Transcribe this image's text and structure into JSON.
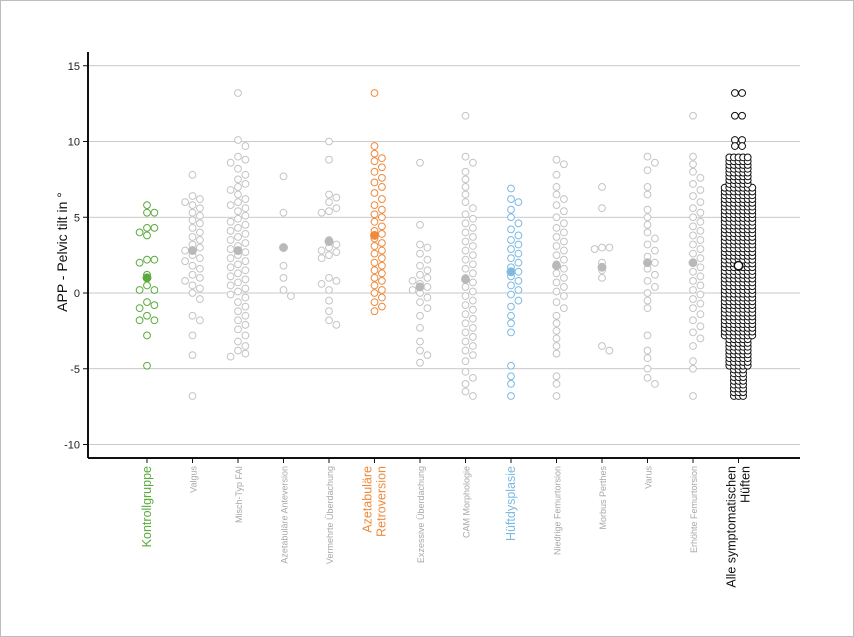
{
  "chart_data": {
    "type": "scatter",
    "subtype": "beeswarm",
    "ylabel": "APP - Pelvic tilt in °",
    "ylim": [
      -11,
      16
    ],
    "yticks": [
      15,
      10,
      5,
      0,
      -5,
      -10
    ],
    "grid": true,
    "colors": {
      "grey": "#c4c4c4",
      "mean_grey": "#b9b9b9",
      "green": "#5aaa3c",
      "orange": "#ef8a3c",
      "blue": "#7db9e3",
      "black": "#111111"
    },
    "categories": [
      {
        "label": "Kontrollgruppe",
        "lines": [
          "Kontrollgruppe"
        ],
        "color": "green",
        "emphasis": true,
        "mean": 1.0,
        "values": [
          5.8,
          5.3,
          5.3,
          4.3,
          4.3,
          4.0,
          3.8,
          2.2,
          2.2,
          2.0,
          1.2,
          0.5,
          0.2,
          0.2,
          -0.6,
          -0.8,
          -1.0,
          -1.5,
          -1.8,
          -1.8,
          -2.8,
          -4.8
        ]
      },
      {
        "label": "Valgus",
        "lines": [
          "Valgus"
        ],
        "color": "grey",
        "emphasis": false,
        "mean": 2.8,
        "values": [
          7.8,
          6.4,
          6.2,
          6.0,
          5.8,
          5.6,
          5.3,
          5.1,
          4.8,
          4.6,
          4.3,
          4.0,
          3.7,
          3.5,
          3.2,
          3.0,
          2.8,
          2.5,
          2.3,
          2.1,
          1.8,
          1.6,
          1.2,
          1.0,
          0.8,
          0.5,
          0.3,
          0.0,
          -0.4,
          -1.5,
          -1.8,
          -2.8,
          -4.1,
          -6.8
        ]
      },
      {
        "label": "Misch-Typ FAI",
        "lines": [
          "Misch-Typ FAI"
        ],
        "color": "grey",
        "emphasis": false,
        "mean": 2.8,
        "values": [
          13.2,
          10.1,
          9.7,
          9.0,
          8.8,
          8.6,
          8.2,
          7.8,
          7.5,
          7.2,
          7.0,
          6.8,
          6.5,
          6.2,
          6.0,
          5.8,
          5.6,
          5.4,
          5.1,
          4.9,
          4.7,
          4.5,
          4.3,
          4.1,
          3.9,
          3.7,
          3.5,
          3.3,
          3.1,
          2.9,
          2.7,
          2.5,
          2.3,
          2.1,
          1.9,
          1.7,
          1.5,
          1.3,
          1.1,
          0.9,
          0.7,
          0.5,
          0.3,
          0.1,
          -0.1,
          -0.3,
          -0.6,
          -0.9,
          -1.2,
          -1.5,
          -1.8,
          -2.1,
          -2.4,
          -2.8,
          -3.2,
          -3.5,
          -3.8,
          -4.0,
          -4.2
        ]
      },
      {
        "label": "Azetabuläre Anteversion",
        "lines": [
          "Azetabuläre Anteversion"
        ],
        "color": "grey",
        "emphasis": false,
        "mean": 3.0,
        "values": [
          7.7,
          5.3,
          3.0,
          1.8,
          1.0,
          0.2,
          -0.2
        ]
      },
      {
        "label": "Vermehrte Überdachung",
        "lines": [
          "Vermehrte Überdachung"
        ],
        "color": "grey",
        "emphasis": false,
        "mean": 3.4,
        "values": [
          10.0,
          8.8,
          6.5,
          6.3,
          6.0,
          5.6,
          5.4,
          5.3,
          3.5,
          3.2,
          3.0,
          2.8,
          2.7,
          2.5,
          2.3,
          1.0,
          0.8,
          0.6,
          0.2,
          -0.5,
          -1.2,
          -1.8,
          -2.1
        ]
      },
      {
        "label": "Azetabuläre Retroversion",
        "lines": [
          "Azetabuläre",
          "Retroversion"
        ],
        "color": "orange",
        "emphasis": true,
        "mean": 3.8,
        "values": [
          13.2,
          9.7,
          9.2,
          8.9,
          8.7,
          8.3,
          8.0,
          7.6,
          7.3,
          7.0,
          6.6,
          6.2,
          5.8,
          5.5,
          5.2,
          5.0,
          4.7,
          4.4,
          4.1,
          3.9,
          3.6,
          3.3,
          3.1,
          2.8,
          2.6,
          2.3,
          2.0,
          1.8,
          1.5,
          1.3,
          1.0,
          0.8,
          0.5,
          0.2,
          0.0,
          -0.3,
          -0.6,
          -0.9,
          -1.2
        ]
      },
      {
        "label": "Exzessive Überdachung",
        "lines": [
          "Exzessive Überdachung"
        ],
        "color": "grey",
        "emphasis": false,
        "mean": 0.4,
        "values": [
          8.6,
          4.5,
          3.2,
          3.0,
          2.6,
          2.2,
          1.8,
          1.5,
          1.2,
          1.0,
          0.8,
          0.6,
          0.4,
          0.2,
          0.0,
          -0.3,
          -0.6,
          -1.0,
          -1.5,
          -2.3,
          -3.2,
          -3.8,
          -4.1,
          -4.6
        ]
      },
      {
        "label": "CAM Morphologie",
        "lines": [
          "CAM Morphologie"
        ],
        "color": "grey",
        "emphasis": false,
        "mean": 0.9,
        "values": [
          11.7,
          9.0,
          8.6,
          8.0,
          7.5,
          7.0,
          6.5,
          6.0,
          5.6,
          5.2,
          4.9,
          4.6,
          4.3,
          4.0,
          3.7,
          3.4,
          3.1,
          2.8,
          2.5,
          2.2,
          1.9,
          1.6,
          1.3,
          1.0,
          0.7,
          0.4,
          0.1,
          -0.2,
          -0.5,
          -0.8,
          -1.1,
          -1.4,
          -1.7,
          -2.0,
          -2.3,
          -2.6,
          -2.9,
          -3.2,
          -3.5,
          -3.8,
          -4.1,
          -4.5,
          -5.2,
          -5.6,
          -6.0,
          -6.5,
          -6.8
        ]
      },
      {
        "label": "Hüftdysplasie",
        "lines": [
          "Hüftdysplasie"
        ],
        "color": "blue",
        "emphasis": true,
        "mean": 1.4,
        "values": [
          6.9,
          6.2,
          6.0,
          5.5,
          5.0,
          4.6,
          4.2,
          3.8,
          3.5,
          3.2,
          2.9,
          2.6,
          2.3,
          2.0,
          1.7,
          1.4,
          1.1,
          0.8,
          0.5,
          0.2,
          -0.1,
          -0.5,
          -0.9,
          -1.5,
          -2.0,
          -2.6,
          -4.8,
          -5.5,
          -6.0,
          -6.8
        ]
      },
      {
        "label": "Niedrige Femurtorsion",
        "lines": [
          "Niedrige Femurtorsion"
        ],
        "color": "grey",
        "emphasis": false,
        "mean": 1.8,
        "values": [
          8.8,
          8.5,
          7.8,
          7.0,
          6.5,
          6.2,
          5.8,
          5.4,
          5.0,
          4.6,
          4.3,
          4.0,
          3.7,
          3.4,
          3.1,
          2.8,
          2.5,
          2.2,
          1.9,
          1.6,
          1.3,
          1.0,
          0.7,
          0.4,
          0.1,
          -0.2,
          -0.6,
          -1.0,
          -1.5,
          -2.0,
          -2.5,
          -3.0,
          -3.5,
          -4.0,
          -5.5,
          -6.0,
          -6.8
        ]
      },
      {
        "label": "Morbus Perthes",
        "lines": [
          "Morbus Perthes"
        ],
        "color": "grey",
        "emphasis": false,
        "mean": 1.7,
        "values": [
          7.0,
          5.6,
          3.0,
          3.0,
          2.9,
          2.0,
          1.5,
          1.0,
          -3.5,
          -3.8
        ]
      },
      {
        "label": "Varus",
        "lines": [
          "Varus"
        ],
        "color": "grey",
        "emphasis": false,
        "mean": 2.0,
        "values": [
          9.0,
          8.6,
          8.1,
          7.0,
          6.5,
          5.5,
          5.0,
          4.5,
          4.0,
          3.6,
          3.2,
          2.8,
          2.4,
          2.0,
          1.6,
          1.2,
          0.8,
          0.4,
          0.0,
          -0.5,
          -1.0,
          -2.8,
          -3.8,
          -4.3,
          -5.0,
          -5.6,
          -6.0
        ]
      },
      {
        "label": "Erhöhte Femurtorsion",
        "lines": [
          "Erhöhte Femurtorsion"
        ],
        "color": "grey",
        "emphasis": false,
        "mean": 2.0,
        "values": [
          11.7,
          9.0,
          8.5,
          8.0,
          7.6,
          7.2,
          6.8,
          6.4,
          6.0,
          5.6,
          5.3,
          5.0,
          4.7,
          4.4,
          4.1,
          3.8,
          3.5,
          3.2,
          2.9,
          2.6,
          2.3,
          2.0,
          1.7,
          1.4,
          1.1,
          0.8,
          0.5,
          0.2,
          -0.1,
          -0.4,
          -0.7,
          -1.0,
          -1.4,
          -1.8,
          -2.2,
          -2.6,
          -3.0,
          -3.5,
          -4.5,
          -5.0,
          -6.8
        ]
      },
      {
        "label": "Alle symptomatischen Hüften",
        "lines": [
          "Alle symptomatischen",
          "Hüften"
        ],
        "color": "black",
        "emphasis": true,
        "mean": 1.8,
        "dense": {
          "min": -6.8,
          "max": 9.0,
          "step": 0.25,
          "outliers": [
            13.2,
            11.7,
            10.1,
            9.7
          ]
        }
      }
    ]
  }
}
